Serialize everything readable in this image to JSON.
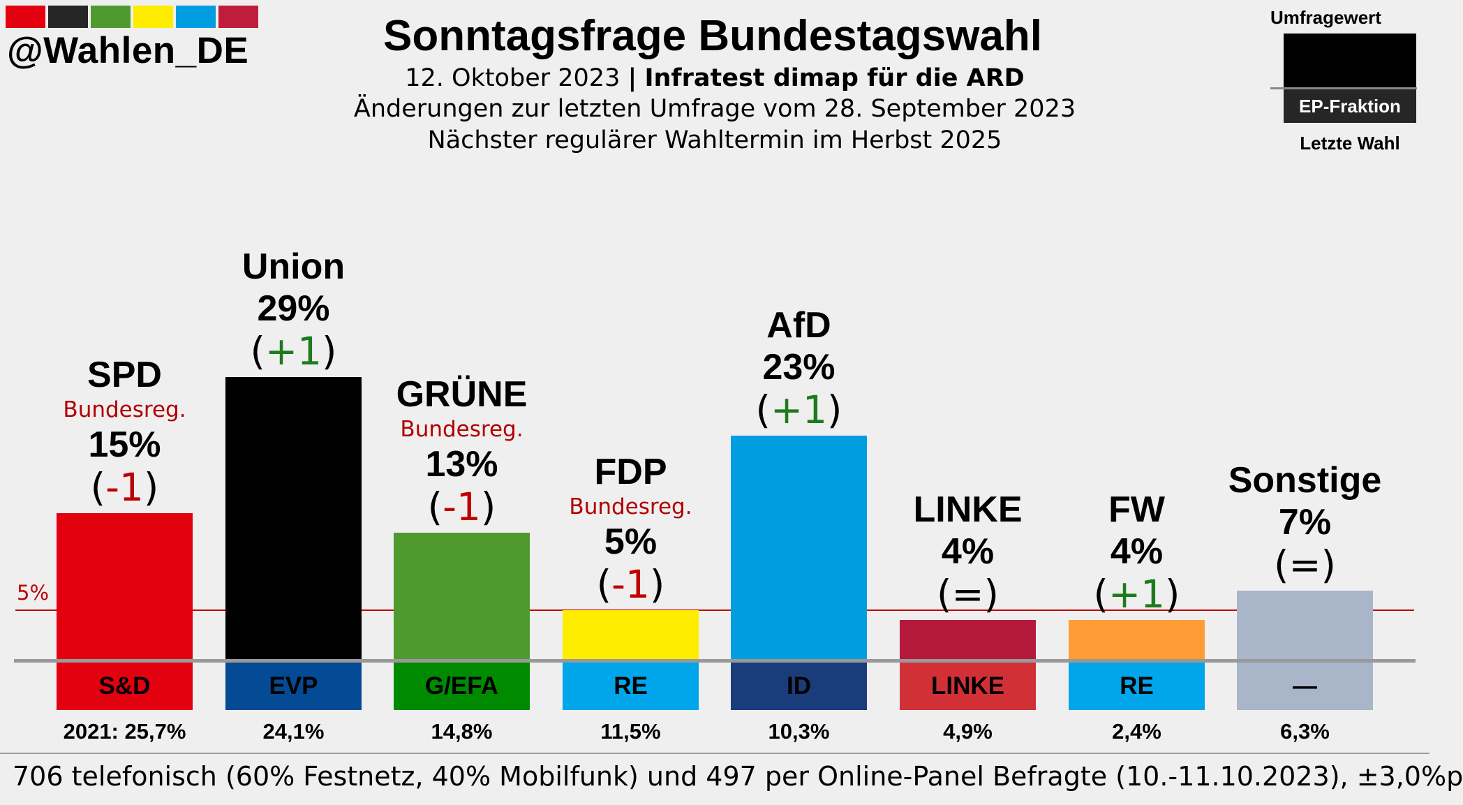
{
  "header": {
    "handle": "@Wahlen_DE",
    "strip_colors": [
      "#e3000f",
      "#262626",
      "#4f9a2f",
      "#ffed00",
      "#009ee0",
      "#be1e3c"
    ],
    "title": "Sonntagsfrage Bundestagswahl",
    "date": "12. Oktober 2023",
    "separator": "|",
    "institute": "Infratest dimap für die ARD",
    "changes_note": "Änderungen zur letzten Umfrage vom 28. September 2023",
    "next_election": "Nächster regulärer Wahltermin im Herbst 2025"
  },
  "legend": {
    "poll_value": "Umfragewert",
    "ep_group": "EP-Fraktion",
    "last_election": "Letzte Wahl"
  },
  "threshold": {
    "label": "5%",
    "value": 5
  },
  "chart_data": {
    "type": "bar",
    "title": "Sonntagsfrage Bundestagswahl",
    "ylim": [
      0,
      29
    ],
    "threshold": 5,
    "categories": [
      "SPD",
      "Union",
      "GRÜNE",
      "FDP",
      "AfD",
      "LINKE",
      "FW",
      "Sonstige"
    ],
    "values": [
      15,
      29,
      13,
      5,
      23,
      4,
      4,
      7
    ],
    "bars": [
      {
        "name": "SPD",
        "value": 15,
        "pct": "15%",
        "change_sign": "-1",
        "change_color": "#c00000",
        "gov": "Bundesreg.",
        "ep": "S&D",
        "last": "2021: 25,7%",
        "color": "#e3000f",
        "ep_color": "#e3000f",
        "ep_text": "#000000"
      },
      {
        "name": "Union",
        "value": 29,
        "pct": "29%",
        "change_sign": "+1",
        "change_color": "#1e7a1e",
        "gov": "",
        "ep": "EVP",
        "last": "24,1%",
        "color": "#000000",
        "ep_color": "#054a94",
        "ep_text": "#000000"
      },
      {
        "name": "GRÜNE",
        "value": 13,
        "pct": "13%",
        "change_sign": "-1",
        "change_color": "#c00000",
        "gov": "Bundesreg.",
        "ep": "G/EFA",
        "last": "14,8%",
        "color": "#4f9a2f",
        "ep_color": "#008a00",
        "ep_text": "#000000"
      },
      {
        "name": "FDP",
        "value": 5,
        "pct": "5%",
        "change_sign": "-1",
        "change_color": "#c00000",
        "gov": "Bundesreg.",
        "ep": "RE",
        "last": "11,5%",
        "color": "#ffed00",
        "ep_color": "#00a5ea",
        "ep_text": "#000000"
      },
      {
        "name": "AfD",
        "value": 23,
        "pct": "23%",
        "change_sign": "+1",
        "change_color": "#1e7a1e",
        "gov": "",
        "ep": "ID",
        "last": "10,3%",
        "color": "#009ee0",
        "ep_color": "#1b3c7a",
        "ep_text": "#000000"
      },
      {
        "name": "LINKE",
        "value": 4,
        "pct": "4%",
        "change_sign": "=",
        "change_color": "#000000",
        "gov": "",
        "ep": "LINKE",
        "last": "4,9%",
        "color": "#b5193b",
        "ep_color": "#d13136",
        "ep_text": "#000000"
      },
      {
        "name": "FW",
        "value": 4,
        "pct": "4%",
        "change_sign": "+1",
        "change_color": "#1e7a1e",
        "gov": "",
        "ep": "RE",
        "last": "2,4%",
        "color": "#ff9c33",
        "ep_color": "#00a5ea",
        "ep_text": "#000000"
      },
      {
        "name": "Sonstige",
        "value": 7,
        "pct": "7%",
        "change_sign": "=",
        "change_color": "#000000",
        "gov": "",
        "ep": "—",
        "last": "6,3%",
        "color": "#a9b6c9",
        "ep_color": "#a9b6c9",
        "ep_text": "#000000"
      }
    ]
  },
  "footer": {
    "note": "706 telefonisch (60% Festnetz, 40% Mobilfunk) und 497 per Online-Panel Befragte (10.-11.10.2023), ±3,0%p"
  }
}
